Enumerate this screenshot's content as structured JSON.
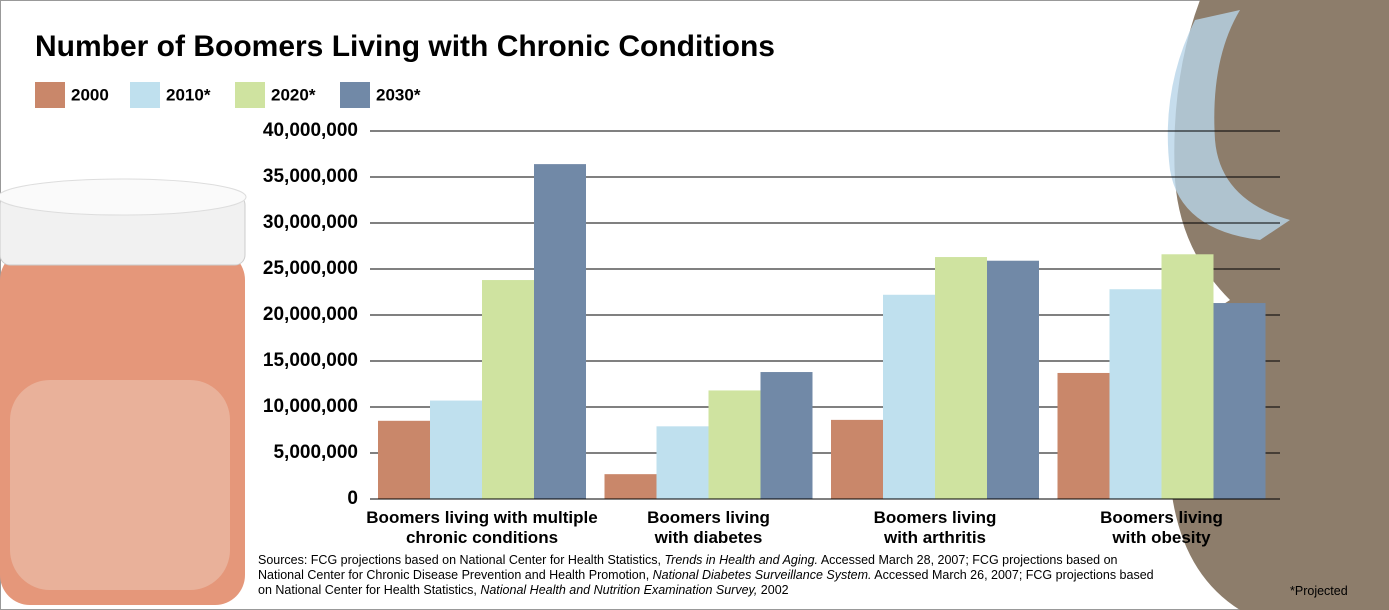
{
  "chart_data": {
    "type": "bar",
    "title": "Number of Boomers Living with Chronic Conditions",
    "categories": [
      "Boomers living with multiple chronic conditions",
      "Boomers living with diabetes",
      "Boomers living with arthritis",
      "Boomers living with obesity"
    ],
    "series": [
      {
        "name": "2000",
        "color": "#c9876a",
        "values": [
          8500000,
          2700000,
          8600000,
          13700000
        ]
      },
      {
        "name": "2010*",
        "color": "#bfe0ee",
        "values": [
          10700000,
          7900000,
          22200000,
          22800000
        ]
      },
      {
        "name": "2020*",
        "color": "#cfe3a0",
        "values": [
          23800000,
          11800000,
          26300000,
          26600000
        ]
      },
      {
        "name": "2030*",
        "color": "#7189a7",
        "values": [
          36400000,
          13800000,
          25900000,
          21300000
        ]
      }
    ],
    "ylim": [
      0,
      40000000
    ],
    "yticks": [
      0,
      {
        "value": 5000000,
        "label": "5,000,000"
      },
      {
        "value": 10000000,
        "label": "10,000,000"
      },
      {
        "value": 15000000,
        "label": "15,000,000"
      },
      {
        "value": 20000000,
        "label": "20,000,000"
      },
      {
        "value": 25000000,
        "label": "25,000,000"
      },
      {
        "value": 30000000,
        "label": "30,000,000"
      },
      {
        "value": 35000000,
        "label": "35,000,000"
      },
      {
        "value": 40000000,
        "label": "40,000,000"
      }
    ],
    "grid": true,
    "sources": [
      {
        "text": "Sources: FCG projections based on National Center for Health Statistics, ",
        "italic": false
      },
      {
        "text": "Trends in Health and Aging.",
        "italic": true
      },
      {
        "text": " Accessed March 28, 2007; FCG projections based on National Center for Chronic Disease Prevention and Health Promotion, ",
        "italic": false
      },
      {
        "text": "National Diabetes Surveillance System.",
        "italic": true
      },
      {
        "text": " Accessed March 26, 2007; FCG projections based on National Center for Health Statistics, ",
        "italic": false
      },
      {
        "text": "National Health and Nutrition Examination Survey,",
        "italic": true
      },
      {
        "text": " 2002",
        "italic": false
      }
    ],
    "footnote": "*Projected"
  }
}
